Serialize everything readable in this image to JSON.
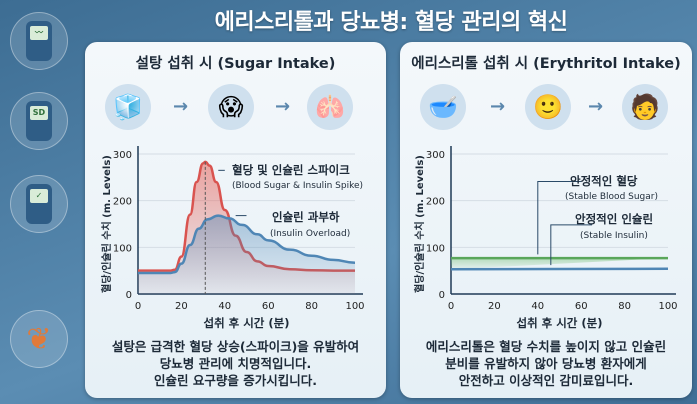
{
  "title": "에리스리톨과 당뇨병: 혈당 관리의 혁신",
  "sidebar": {
    "icons": [
      "glucose-meter-icon",
      "sd-glucose-meter-icon",
      "glucose-meter-stable-icon",
      "pancreas-icon"
    ],
    "meter_label": "SD"
  },
  "left": {
    "heading": "설탕 섭취 시 (Sugar Intake)",
    "icons": [
      "sugar-cubes-icon",
      "stressed-person-icon",
      "inflamed-pancreas-icon"
    ],
    "caption": [
      "설탕은 급격한 혈당 상승(스파이크)을 유발하여",
      "당뇨병 관리에 치명적입니다.",
      "인슐린 요구량을 증가시킵니다."
    ]
  },
  "right": {
    "heading": "에리스리톨 섭취 시 (Erythritol Intake)",
    "icons": [
      "sweetener-bowl-icon",
      "happy-person-icon",
      "person-with-meter-icon"
    ],
    "caption": [
      "에리스리톨은 혈당 수치를 높이지 않고 인슐린",
      "분비를 유발하지 않아 당뇨병 환자에게",
      "안전하고 이상적인 감미료입니다."
    ]
  },
  "chart_data": [
    {
      "type": "line",
      "xlabel": "섭취 후 시간 (분)",
      "ylabel": "혈당/인슐린 수치 (m. Levels)",
      "xlim": [
        0,
        100
      ],
      "ylim": [
        0,
        300
      ],
      "xticks": [
        "0",
        "20",
        "40",
        "60",
        "80",
        "100"
      ],
      "yticks": [
        "0",
        "100",
        "200",
        "300"
      ],
      "grid": true,
      "colors": {
        "sugar": "#d9534f",
        "insulin": "#4f86b5"
      },
      "annotations": [
        {
          "ko": "혈당 및 인슐린 스파이크",
          "en": "(Blood Sugar & Insulin Spike)"
        },
        {
          "ko": "인슐린 과부하",
          "en": "(Insulin Overload)"
        }
      ],
      "series": [
        {
          "x": [
            0,
            15,
            17,
            20,
            24,
            27,
            30,
            31,
            33,
            36,
            40,
            45,
            50,
            55,
            60,
            70,
            80,
            90,
            100
          ],
          "values": [
            50,
            50,
            52,
            80,
            170,
            240,
            280,
            283,
            275,
            240,
            180,
            125,
            90,
            70,
            60,
            53,
            51,
            50,
            50
          ]
        },
        {
          "x": [
            0,
            15,
            17,
            20,
            24,
            28,
            32,
            37,
            42,
            48,
            55,
            60,
            70,
            80,
            90,
            100
          ],
          "values": [
            45,
            45,
            47,
            65,
            105,
            140,
            160,
            168,
            162,
            148,
            128,
            115,
            95,
            82,
            73,
            67
          ]
        }
      ]
    },
    {
      "type": "line",
      "xlabel": "섭취 후 시간 (분)",
      "ylabel": "혈당/인슐린 수치 (m. Levels)",
      "xlim": [
        0,
        100
      ],
      "ylim": [
        0,
        300
      ],
      "xticks": [
        "0",
        "20",
        "40",
        "60",
        "80",
        "100"
      ],
      "yticks": [
        "0",
        "100",
        "200",
        "300"
      ],
      "grid": true,
      "colors": {
        "sugar": "#5aa65a",
        "insulin": "#4f86b5"
      },
      "annotations": [
        {
          "ko": "안정적인 혈당",
          "en": "(Stable Blood Sugar)"
        },
        {
          "ko": "안정적인 인슐린",
          "en": "(Stable Insulin)"
        }
      ],
      "series": [
        {
          "x": [
            0,
            100
          ],
          "values": [
            77,
            77
          ]
        },
        {
          "x": [
            0,
            100
          ],
          "values": [
            53,
            54
          ]
        }
      ]
    }
  ]
}
